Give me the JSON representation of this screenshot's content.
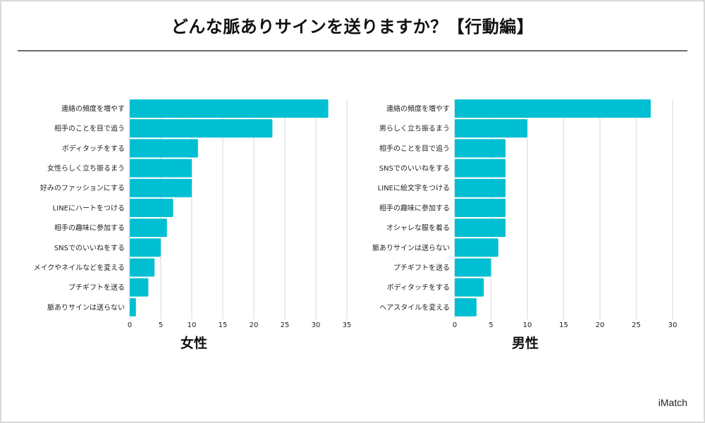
{
  "title": "どんな脈ありサインを送りますか？【行動編】",
  "brand": "iMatch",
  "colors": {
    "bar": "#00BFD3",
    "grid": "#dddddd",
    "divider": "#6b6b6b"
  },
  "chart_data": [
    {
      "type": "bar",
      "orientation": "horizontal",
      "title": "女性",
      "xlabel": "",
      "ylabel": "",
      "xlim": [
        0,
        35
      ],
      "xticks": [
        0,
        5,
        10,
        15,
        20,
        25,
        30,
        35
      ],
      "grid": true,
      "categories": [
        "連絡の頻度を増やす",
        "相手のことを目で追う",
        "ボディタッチをする",
        "女性らしく立ち振るまう",
        "好みのファッションにする",
        "LINEにハートをつける",
        "相手の趣味に参加する",
        "SNSでのいいねをする",
        "メイクやネイルなどを変える",
        "プチギフトを送る",
        "脈ありサインは送らない"
      ],
      "values": [
        32,
        23,
        11,
        10,
        10,
        7,
        6,
        5,
        4,
        3,
        1
      ]
    },
    {
      "type": "bar",
      "orientation": "horizontal",
      "title": "男性",
      "xlabel": "",
      "ylabel": "",
      "xlim": [
        0,
        30
      ],
      "xticks": [
        0,
        5,
        10,
        15,
        20,
        25,
        30
      ],
      "grid": true,
      "categories": [
        "連絡の頻度を増やす",
        "男らしく立ち振るまう",
        "相手のことを目で追う",
        "SNSでのいいねをする",
        "LINEに絵文字をつける",
        "相手の趣味に参加する",
        "オシャレな服を着る",
        "脈ありサインは送らない",
        "プチギフトを送る",
        "ボディタッチをする",
        "ヘアスタイルを変える"
      ],
      "values": [
        27,
        10,
        7,
        7,
        7,
        7,
        7,
        6,
        5,
        4,
        3
      ]
    }
  ]
}
